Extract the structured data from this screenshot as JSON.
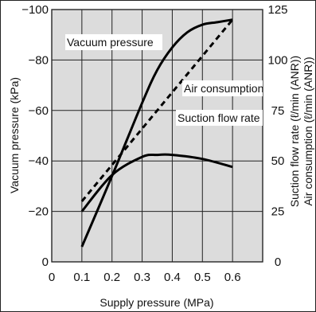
{
  "chart_data": {
    "type": "line",
    "xlabel": "Supply pressure (MPa)",
    "ylabel_left": "Vacuum pressure (kPa)",
    "ylabel_right_1": "Suction flow rate (ℓ/min (ANR))",
    "ylabel_right_2": "Air consumption (ℓ/min (ANR))",
    "xlim": [
      0,
      0.7
    ],
    "ylim_left": [
      0,
      -100
    ],
    "ylim_right": [
      0,
      125
    ],
    "x_ticks": [
      "0",
      "0.1",
      "0.2",
      "0.3",
      "0.4",
      "0.5",
      "0.6"
    ],
    "y_left_ticks": [
      "0",
      "−20",
      "−40",
      "−60",
      "−80",
      "−100"
    ],
    "y_right_ticks": [
      "0",
      "25",
      "50",
      "75",
      "100",
      "125"
    ],
    "grid": true,
    "series": [
      {
        "name": "Vacuum pressure",
        "axis": "left",
        "style": "solid",
        "x": [
          0.1,
          0.2,
          0.3,
          0.35,
          0.4,
          0.45,
          0.5,
          0.55,
          0.6
        ],
        "y": [
          -6,
          -34,
          -63,
          -76,
          -85,
          -91,
          -94,
          -95,
          -96
        ]
      },
      {
        "name": "Air consumption",
        "axis": "right",
        "style": "dashed",
        "x": [
          0.1,
          0.6
        ],
        "y": [
          30,
          120
        ]
      },
      {
        "name": "Suction flow rate",
        "axis": "right",
        "style": "solid",
        "x": [
          0.1,
          0.2,
          0.3,
          0.35,
          0.4,
          0.5,
          0.6
        ],
        "y": [
          25,
          43,
          52,
          53,
          53,
          51,
          47
        ]
      }
    ]
  }
}
